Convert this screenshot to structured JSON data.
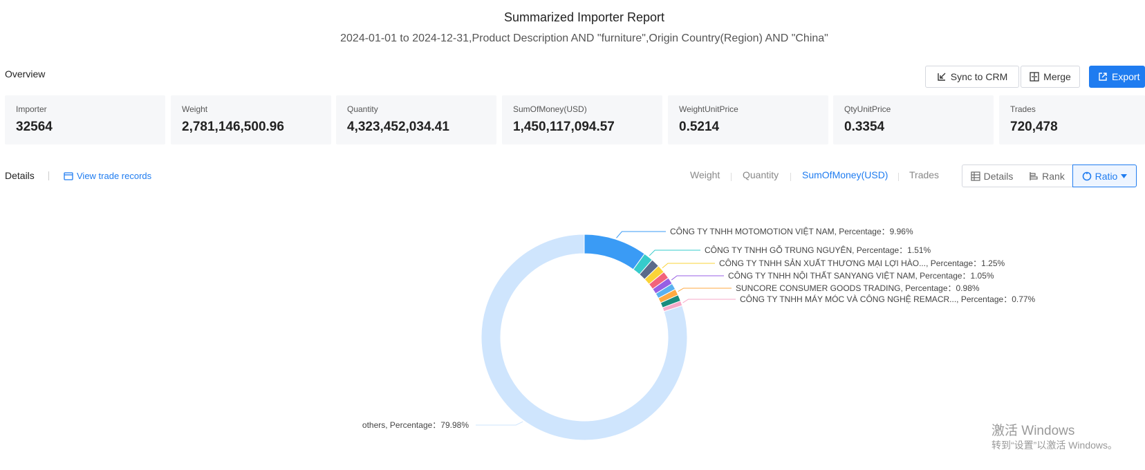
{
  "report": {
    "title": "Summarized Importer Report",
    "subtitle": "2024-01-01 to 2024-12-31,Product Description AND \"furniture\",Origin Country(Region) AND \"China\""
  },
  "overview": {
    "label": "Overview",
    "sync_label": "Sync to CRM",
    "merge_label": "Merge",
    "export_label": "Export",
    "cards": [
      {
        "label": "Importer",
        "value": "32564"
      },
      {
        "label": "Weight",
        "value": "2,781,146,500.96"
      },
      {
        "label": "Quantity",
        "value": "4,323,452,034.41"
      },
      {
        "label": "SumOfMoney(USD)",
        "value": "1,450,117,094.57"
      },
      {
        "label": "WeightUnitPrice",
        "value": "0.5214"
      },
      {
        "label": "QtyUnitPrice",
        "value": "0.3354"
      },
      {
        "label": "Trades",
        "value": "720,478"
      }
    ]
  },
  "details": {
    "label": "Details",
    "view_link": "View trade records",
    "metric_tabs": [
      "Weight",
      "Quantity",
      "SumOfMoney(USD)",
      "Trades"
    ],
    "active_metric": "SumOfMoney(USD)",
    "view_modes": {
      "details": "Details",
      "rank": "Rank",
      "ratio": "Ratio"
    }
  },
  "chart_data": {
    "type": "pie",
    "donut": true,
    "percentage_label": "Percentage",
    "slices": [
      {
        "name": "CÔNG TY TNHH MOTOMOTION VIỆT NAM",
        "percent": "9.96%",
        "value": 9.96,
        "color": "#3a9bf5"
      },
      {
        "name": "CÔNG TY TNHH GỖ TRUNG NGUYÊN",
        "percent": "1.51%",
        "value": 1.51,
        "color": "#36cbcb"
      },
      {
        "name": "",
        "percent": "",
        "value": 1.35,
        "color": "#5b6a8a"
      },
      {
        "name": "CÔNG TY TNHH SẢN XUẤT THƯƠNG MẠI LỢI HÀO...",
        "percent": "1.25%",
        "value": 1.25,
        "color": "#fad337"
      },
      {
        "name": "",
        "percent": "",
        "value": 1.15,
        "color": "#f2637b"
      },
      {
        "name": "CÔNG TY TNHH NỘI THẤT SANYANG VIỆT NAM",
        "percent": "1.05%",
        "value": 1.05,
        "color": "#975fe4"
      },
      {
        "name": "",
        "percent": "",
        "value": 1.0,
        "color": "#5ab1ef"
      },
      {
        "name": "SUNCORE CONSUMER GOODS TRADING",
        "percent": "0.98%",
        "value": 0.98,
        "color": "#ffa940"
      },
      {
        "name": "",
        "percent": "",
        "value": 1.0,
        "color": "#1a8c7d"
      },
      {
        "name": "CÔNG TY TNHH MÁY MÓC VÀ CÔNG NGHỆ REMACR...",
        "percent": "0.77%",
        "value": 0.77,
        "color": "#f7a8c8"
      },
      {
        "name": "others",
        "percent": "79.98%",
        "value": 79.98,
        "color": "#cfe5fd"
      }
    ]
  },
  "watermark": {
    "line1": "激活 Windows",
    "line2": "转到“设置”以激活 Windows。"
  }
}
